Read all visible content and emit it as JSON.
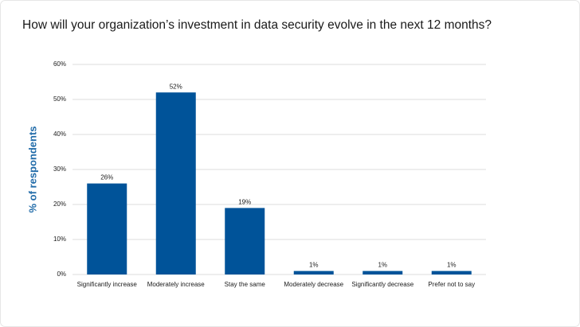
{
  "chart_data": {
    "type": "bar",
    "title": "How will your organization’s investment in data security evolve in the next 12 months?",
    "y_label": "% of respondents",
    "categories": [
      "Significantly increase",
      "Moderately increase",
      "Stay the same",
      "Moderately decrease",
      "Significantly decrease",
      "Prefer not to say"
    ],
    "values": [
      26,
      52,
      19,
      1,
      1,
      1
    ],
    "value_labels": [
      "26%",
      "52%",
      "19%",
      "1%",
      "1%",
      "1%"
    ],
    "color": "#005399",
    "ylim": [
      0,
      60
    ],
    "yticks": [
      {
        "value": 0,
        "label": "0%"
      },
      {
        "value": 10,
        "label": "10%"
      },
      {
        "value": 20,
        "label": "20%"
      },
      {
        "value": 30,
        "label": "30%"
      },
      {
        "value": 40,
        "label": "40%"
      },
      {
        "value": 50,
        "label": "50%"
      },
      {
        "value": 60,
        "label": "60%"
      }
    ],
    "grid": true
  }
}
